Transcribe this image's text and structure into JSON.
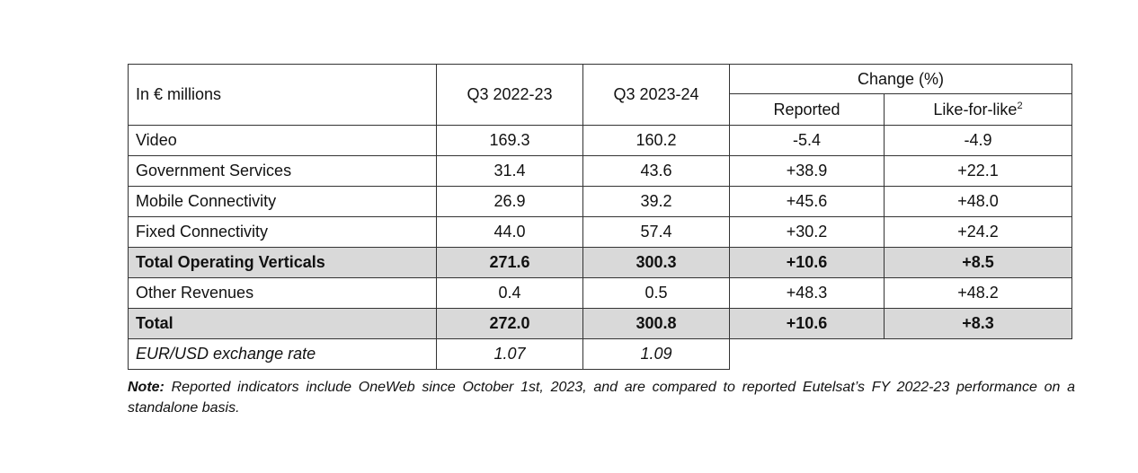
{
  "table": {
    "header": {
      "unit_label": "In € millions",
      "col_q3_2022_23": "Q3 2022-23",
      "col_q3_2023_24": "Q3 2023-24",
      "change_group": "Change (%)",
      "reported": "Reported",
      "like_for_like": "Like-for-like",
      "like_for_like_sup": "2"
    },
    "rows": [
      {
        "label": "Video",
        "q3_2022_23": "169.3",
        "q3_2023_24": "160.2",
        "reported": "-5.4",
        "lfl": "-4.9"
      },
      {
        "label": "Government Services",
        "q3_2022_23": "31.4",
        "q3_2023_24": "43.6",
        "reported": "+38.9",
        "lfl": "+22.1"
      },
      {
        "label": "Mobile Connectivity",
        "q3_2022_23": "26.9",
        "q3_2023_24": "39.2",
        "reported": "+45.6",
        "lfl": "+48.0"
      },
      {
        "label": "Fixed Connectivity",
        "q3_2022_23": "44.0",
        "q3_2023_24": "57.4",
        "reported": "+30.2",
        "lfl": "+24.2"
      },
      {
        "label": "Total Operating Verticals",
        "q3_2022_23": "271.6",
        "q3_2023_24": "300.3",
        "reported": "+10.6",
        "lfl": "+8.5"
      },
      {
        "label": "Other Revenues",
        "q3_2022_23": "0.4",
        "q3_2023_24": "0.5",
        "reported": "+48.3",
        "lfl": "+48.2"
      },
      {
        "label": "Total",
        "q3_2022_23": "272.0",
        "q3_2023_24": "300.8",
        "reported": "+10.6",
        "lfl": "+8.3"
      }
    ],
    "fx_row": {
      "label": "EUR/USD exchange rate",
      "q3_2022_23": "1.07",
      "q3_2023_24": "1.09"
    }
  },
  "note": {
    "prefix": "Note:",
    "text": " Reported indicators include OneWeb since October 1st, 2023, and are compared to reported Eutelsat’s FY 2022-23 performance on a standalone basis."
  },
  "colors": {
    "total_row_shade": "#d9d9d9",
    "border": "#333333"
  }
}
